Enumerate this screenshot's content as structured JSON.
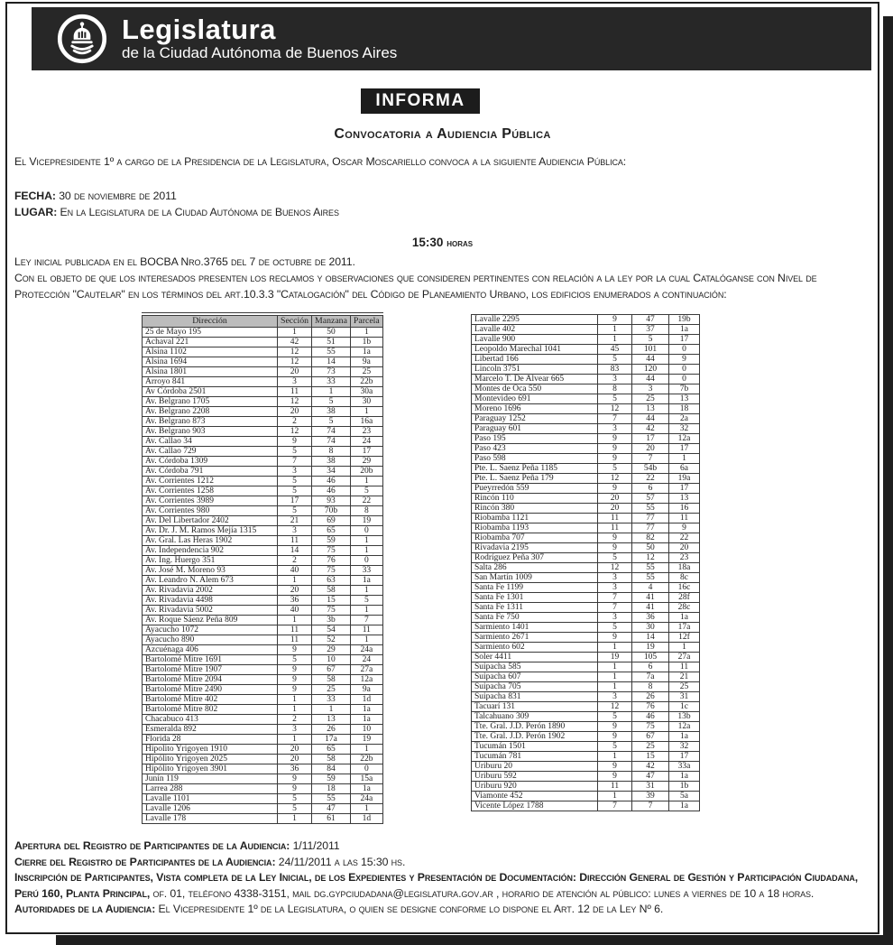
{
  "colors": {
    "ink": "#1f1f1f",
    "table_header_bg": "#bcbcbc"
  },
  "header": {
    "title": "Legislatura",
    "subtitle": "de la Ciudad Autónoma de Buenos Aires"
  },
  "banner": {
    "label": "INFORMA"
  },
  "doc": {
    "title": "Convocatoria a Audiencia Pública",
    "intro": "El Vicepresidente 1º a cargo de la Presidencia de la Legislatura, Oscar Moscariello convoca a la siguiente Audiencia Pública:",
    "fecha_label": "FECHA:",
    "fecha_value": "30 de noviembre de 2011",
    "lugar_label": "LUGAR:",
    "lugar_value": "En la Legislatura de la Ciudad Autónoma de Buenos Aires",
    "hora_time": "15:30",
    "hora_suffix": "horas",
    "ley_line": "Ley inicial publicada en el BOCBA Nro.3765 del 7 de octubre de 2011.",
    "objeto_line": "Con el objeto de que los interesados presenten los reclamos y observaciones que consideren pertinentes con relación a la ley por la cual Catalóganse con Nivel de Protección \"Cautelar\" en los términos del art.10.3.3 \"Catalogación\" del Código de Planeamiento Urbano, los edificios enumerados a continuación:"
  },
  "table": {
    "headers": [
      "Dirección",
      "Sección",
      "Manzana",
      "Parcela"
    ],
    "left_rows": [
      [
        "25 de Mayo 195",
        "1",
        "50",
        "1"
      ],
      [
        "Achaval 221",
        "42",
        "51",
        "1b"
      ],
      [
        "Alsina 1102",
        "12",
        "55",
        "1a"
      ],
      [
        "Alsina 1694",
        "12",
        "14",
        "9a"
      ],
      [
        "Alsina 1801",
        "20",
        "73",
        "25"
      ],
      [
        "Arroyo 841",
        "3",
        "33",
        "22b"
      ],
      [
        "Av Córdoba 2501",
        "11",
        "1",
        "30a"
      ],
      [
        "Av. Belgrano 1705",
        "12",
        "5",
        "30"
      ],
      [
        "Av. Belgrano 2208",
        "20",
        "38",
        "1"
      ],
      [
        "Av. Belgrano 873",
        "2",
        "5",
        "16a"
      ],
      [
        "Av. Belgrano 903",
        "12",
        "74",
        "23"
      ],
      [
        "Av. Callao 34",
        "9",
        "74",
        "24"
      ],
      [
        "Av. Callao 729",
        "5",
        "8",
        "17"
      ],
      [
        "Av. Córdoba 1309",
        "7",
        "38",
        "29"
      ],
      [
        "Av. Córdoba 791",
        "3",
        "34",
        "20b"
      ],
      [
        "Av. Corrientes 1212",
        "5",
        "46",
        "1"
      ],
      [
        "Av. Corrientes 1258",
        "5",
        "46",
        "5"
      ],
      [
        "Av. Corrientes 3989",
        "17",
        "93",
        "22"
      ],
      [
        "Av. Corrientes 980",
        "5",
        "70b",
        "8"
      ],
      [
        "Av. Del Libertador 2402",
        "21",
        "69",
        "19"
      ],
      [
        "Av. Dr. J. M. Ramos Mejía 1315",
        "3",
        "65",
        "0"
      ],
      [
        "Av. Gral. Las Heras 1902",
        "11",
        "59",
        "1"
      ],
      [
        "Av. Independencia 902",
        "14",
        "75",
        "1"
      ],
      [
        "Av. Ing. Huergo 351",
        "2",
        "76",
        "0"
      ],
      [
        "Av. José M. Moreno 93",
        "40",
        "75",
        "33"
      ],
      [
        "Av. Leandro N. Alem 673",
        "1",
        "63",
        "1a"
      ],
      [
        "Av. Rivadavia 2002",
        "20",
        "58",
        "1"
      ],
      [
        "Av. Rivadavia 4498",
        "36",
        "15",
        "5"
      ],
      [
        "Av. Rivadavia 5002",
        "40",
        "75",
        "1"
      ],
      [
        "Av. Roque Sáenz Peña 809",
        "1",
        "3b",
        "7"
      ],
      [
        "Ayacucho 1072",
        "11",
        "54",
        "11"
      ],
      [
        "Ayacucho 890",
        "11",
        "52",
        "1"
      ],
      [
        "Azcuénaga 406",
        "9",
        "29",
        "24a"
      ],
      [
        "Bartolomé Mitre 1691",
        "5",
        "10",
        "24"
      ],
      [
        "Bartolomé Mitre 1907",
        "9",
        "67",
        "27a"
      ],
      [
        "Bartolomé Mitre 2094",
        "9",
        "58",
        "12a"
      ],
      [
        "Bartolomé Mitre 2490",
        "9",
        "25",
        "9a"
      ],
      [
        "Bartolomé Mitre 402",
        "1",
        "33",
        "1d"
      ],
      [
        "Bartolomé Mitre 802",
        "1",
        "1",
        "1a"
      ],
      [
        "Chacabuco 413",
        "2",
        "13",
        "1a"
      ],
      [
        "Esmeralda 892",
        "3",
        "26",
        "10"
      ],
      [
        "Florida 28",
        "1",
        "17a",
        "19"
      ],
      [
        "Hipolito Yrigoyen 1910",
        "20",
        "65",
        "1"
      ],
      [
        "Hipólito Yrigoyen 2025",
        "20",
        "58",
        "22b"
      ],
      [
        "Hipólito Yrigoyen 3901",
        "36",
        "84",
        "0"
      ],
      [
        "Junín 119",
        "9",
        "59",
        "15a"
      ],
      [
        "Larrea 288",
        "9",
        "18",
        "1a"
      ],
      [
        "Lavalle 1101",
        "5",
        "55",
        "24a"
      ],
      [
        "Lavalle 1206",
        "5",
        "47",
        "1"
      ],
      [
        "Lavalle 178",
        "1",
        "61",
        "1d"
      ]
    ],
    "right_rows": [
      [
        "Lavalle 2295",
        "9",
        "47",
        "19b"
      ],
      [
        "Lavalle 402",
        "1",
        "37",
        "1a"
      ],
      [
        "Lavalle 900",
        "1",
        "5",
        "17"
      ],
      [
        "Leopoldo Marechal 1041",
        "45",
        "101",
        "0"
      ],
      [
        "Libertad 166",
        "5",
        "44",
        "9"
      ],
      [
        "Lincoln 3751",
        "83",
        "120",
        "0"
      ],
      [
        "Marcelo T. De Alvear 665",
        "3",
        "44",
        "0"
      ],
      [
        "Montes de Oca 550",
        "8",
        "3",
        "7b"
      ],
      [
        "Montevideo 691",
        "5",
        "25",
        "13"
      ],
      [
        "Moreno 1696",
        "12",
        "13",
        "18"
      ],
      [
        "Paraguay 1252",
        "7",
        "44",
        "2a"
      ],
      [
        "Paraguay 601",
        "3",
        "42",
        "32"
      ],
      [
        "Paso 195",
        "9",
        "17",
        "12a"
      ],
      [
        "Paso 423",
        "9",
        "20",
        "17"
      ],
      [
        "Paso 598",
        "9",
        "7",
        "1"
      ],
      [
        "Pte. L. Saenz Peña 1185",
        "5",
        "54b",
        "6a"
      ],
      [
        "Pte. L. Saenz Peña 179",
        "12",
        "22",
        "19a"
      ],
      [
        "Pueyrredón 559",
        "9",
        "6",
        "17"
      ],
      [
        "Rincón 110",
        "20",
        "57",
        "13"
      ],
      [
        "Rincón 380",
        "20",
        "55",
        "16"
      ],
      [
        "Riobamba 1121",
        "11",
        "77",
        "11"
      ],
      [
        "Riobamba 1193",
        "11",
        "77",
        "9"
      ],
      [
        "Riobamba 707",
        "9",
        "82",
        "22"
      ],
      [
        "Rivadavia 2195",
        "9",
        "50",
        "20"
      ],
      [
        "Rodríguez Peña 307",
        "5",
        "12",
        "23"
      ],
      [
        "Salta 286",
        "12",
        "55",
        "18a"
      ],
      [
        "San Martín 1009",
        "3",
        "55",
        "8c"
      ],
      [
        "Santa Fe 1199",
        "3",
        "4",
        "16c"
      ],
      [
        "Santa Fe 1301",
        "7",
        "41",
        "28f"
      ],
      [
        "Santa Fe 1311",
        "7",
        "41",
        "28c"
      ],
      [
        "Santa Fe 750",
        "3",
        "36",
        "1a"
      ],
      [
        "Sarmiento 1401",
        "5",
        "30",
        "17a"
      ],
      [
        "Sarmiento 2671",
        "9",
        "14",
        "12f"
      ],
      [
        "Sarmiento 602",
        "1",
        "19",
        "1"
      ],
      [
        "Soler 4411",
        "19",
        "105",
        "27a"
      ],
      [
        "Suipacha 585",
        "1",
        "6",
        "11"
      ],
      [
        "Suipacha 607",
        "1",
        "7a",
        "21"
      ],
      [
        "Suipacha 705",
        "1",
        "8",
        "25"
      ],
      [
        "Suipacha 831",
        "3",
        "26",
        "31"
      ],
      [
        "Tacuarí 131",
        "12",
        "76",
        "1c"
      ],
      [
        "Talcahuano 309",
        "5",
        "46",
        "13b"
      ],
      [
        "Tte. Gral. J.D. Perón 1890",
        "9",
        "75",
        "12a"
      ],
      [
        "Tte. Gral. J.D. Perón 1902",
        "9",
        "67",
        "1a"
      ],
      [
        "Tucumán 1501",
        "5",
        "25",
        "32"
      ],
      [
        "Tucumán 781",
        "1",
        "15",
        "17"
      ],
      [
        "Uriburu 20",
        "9",
        "42",
        "33a"
      ],
      [
        "Uriburu 592",
        "9",
        "47",
        "1a"
      ],
      [
        "Uriburu 920",
        "11",
        "31",
        "1b"
      ],
      [
        "Viamonte 452",
        "1",
        "39",
        "5a"
      ],
      [
        "Vicente López 1788",
        "7",
        "7",
        "1a"
      ]
    ]
  },
  "footer": {
    "lines": [
      {
        "bold": "Apertura del Registro de Participantes de la Audiencia:",
        "text": " 1/11/2011"
      },
      {
        "bold": "Cierre del Registro de Participantes de la Audiencia:",
        "text": "  24/11/2011 a las 15:30 hs."
      },
      {
        "bold": "Inscripción de Participantes, Vista completa de la Ley Inicial, de los Expedientes y Presentación de Documentación: Dirección General de Gestión y Participación Ciudadana, Perú 160, Planta Principal,",
        "text": " of. 01, teléfono 4338-3151, mail dg.gypciudadana@legislatura.gov.ar , horario de atención al público: lunes a viernes de 10 a 18 horas."
      },
      {
        "bold": "Autoridades de la Audiencia:",
        "text": " El Vicepresidente 1º de la Legislatura, o quien se designe conforme lo dispone el Art. 12 de la Ley Nº 6."
      }
    ]
  }
}
